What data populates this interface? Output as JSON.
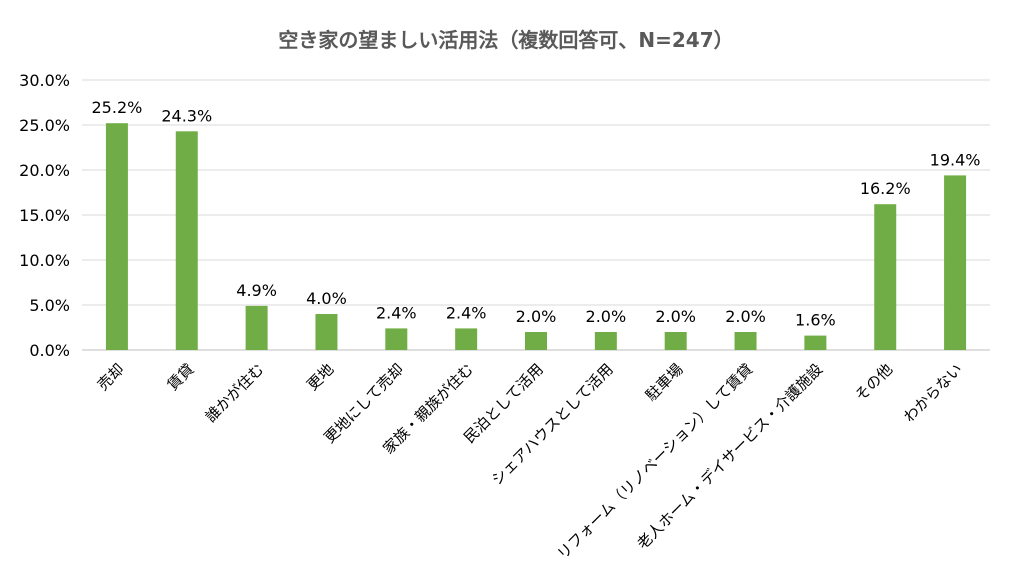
{
  "chart_data": {
    "type": "bar",
    "title": "空き家の望ましい活用法（複数回答可、N=247）",
    "xlabel": "",
    "ylabel": "",
    "categories": [
      "売却",
      "賃貸",
      "誰かが住む",
      "更地",
      "更地にして売却",
      "家族・親族が住む",
      "民泊として活用",
      "シェアハウスとして活用",
      "駐車場",
      "リフォーム（リノベーション）して賃貸",
      "老人ホーム・デイサービス・介護施設",
      "その他",
      "わからない"
    ],
    "values": [
      25.2,
      24.3,
      4.9,
      4.0,
      2.4,
      2.4,
      2.0,
      2.0,
      2.0,
      2.0,
      1.6,
      16.2,
      19.4
    ],
    "data_labels": [
      "25.2%",
      "24.3%",
      "4.9%",
      "4.0%",
      "2.4%",
      "2.4%",
      "2.0%",
      "2.0%",
      "2.0%",
      "2.0%",
      "1.6%",
      "16.2%",
      "19.4%"
    ],
    "ylim": [
      0,
      30
    ],
    "yticks": [
      0,
      5,
      10,
      15,
      20,
      25,
      30
    ],
    "ytick_labels": [
      "0.0%",
      "5.0%",
      "10.0%",
      "15.0%",
      "20.0%",
      "25.0%",
      "30.0%"
    ],
    "bar_color": "#70ad47",
    "grid": true,
    "legend": "none"
  }
}
